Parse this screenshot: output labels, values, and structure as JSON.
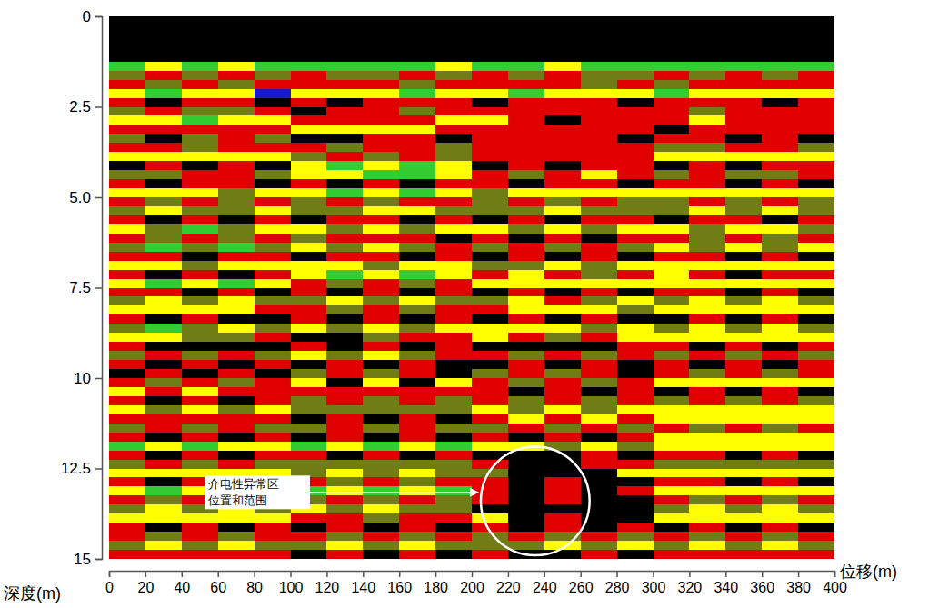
{
  "chart_data": {
    "type": "heatmap",
    "x_label": "位移(m)",
    "y_label": "深度(m)",
    "xlim": [
      0,
      400
    ],
    "ylim": [
      0,
      15
    ],
    "xticks": [
      0,
      20,
      40,
      60,
      80,
      100,
      120,
      140,
      160,
      180,
      200,
      220,
      240,
      260,
      280,
      300,
      320,
      340,
      360,
      380,
      400
    ],
    "yticks": [
      0,
      2.5,
      {
        "value": 5,
        "label": "5.0"
      },
      7.5,
      10,
      12.5,
      15
    ],
    "x_edges": [
      0,
      20,
      40,
      60,
      80,
      100,
      120,
      140,
      160,
      180,
      200,
      220,
      240,
      260,
      280,
      300,
      320,
      340,
      360,
      380,
      400
    ],
    "y_edges": [
      0,
      0.25,
      0.5,
      0.75,
      1,
      1.25,
      1.5,
      1.75,
      2,
      2.25,
      2.5,
      2.75,
      3,
      3.25,
      3.5,
      3.75,
      4,
      4.25,
      4.5,
      4.75,
      5,
      5.25,
      5.5,
      5.75,
      6,
      6.25,
      6.5,
      6.75,
      7,
      7.25,
      7.5,
      7.75,
      8,
      8.25,
      8.5,
      8.75,
      9,
      9.25,
      9.5,
      9.75,
      10,
      10.25,
      10.5,
      10.75,
      11,
      11.25,
      11.5,
      11.75,
      12,
      12.25,
      12.5,
      12.75,
      13,
      13.25,
      13.5,
      13.75,
      14,
      14.25,
      14.5,
      14.75,
      15
    ],
    "cells": [
      [
        0,
        0,
        0,
        0,
        0,
        0,
        0,
        0,
        0,
        0,
        0,
        0,
        0,
        0,
        0,
        0,
        0,
        0,
        0,
        0
      ],
      [
        0,
        0,
        0,
        0,
        0,
        0,
        0,
        0,
        0,
        0,
        0,
        0,
        0,
        0,
        0,
        0,
        0,
        0,
        0,
        0
      ],
      [
        0,
        0,
        0,
        0,
        0,
        0,
        0,
        0,
        0,
        0,
        0,
        0,
        0,
        0,
        0,
        0,
        0,
        0,
        0,
        0
      ],
      [
        0,
        0,
        0,
        0,
        0,
        0,
        0,
        0,
        0,
        0,
        0,
        0,
        0,
        0,
        0,
        0,
        0,
        0,
        0,
        0
      ],
      [
        0,
        0,
        0,
        0,
        0,
        0,
        0,
        0,
        0,
        0,
        0,
        0,
        0,
        0,
        0,
        0,
        0,
        0,
        0,
        0
      ],
      [
        4,
        3,
        4,
        3,
        4,
        4,
        4,
        4,
        4,
        3,
        4,
        4,
        3,
        4,
        4,
        4,
        4,
        4,
        4,
        4
      ],
      [
        2,
        1,
        2,
        1,
        2,
        1,
        2,
        2,
        1,
        2,
        1,
        2,
        1,
        2,
        2,
        1,
        2,
        1,
        2,
        1
      ],
      [
        1,
        2,
        1,
        2,
        1,
        1,
        1,
        1,
        2,
        1,
        1,
        1,
        1,
        2,
        1,
        2,
        1,
        1,
        1,
        1
      ],
      [
        3,
        4,
        3,
        3,
        5,
        3,
        3,
        3,
        4,
        3,
        3,
        4,
        3,
        3,
        3,
        4,
        3,
        3,
        3,
        3
      ],
      [
        1,
        0,
        1,
        1,
        0,
        1,
        0,
        1,
        1,
        1,
        0,
        1,
        1,
        1,
        0,
        1,
        1,
        1,
        0,
        1
      ],
      [
        2,
        1,
        2,
        2,
        1,
        0,
        1,
        1,
        2,
        1,
        1,
        1,
        1,
        1,
        1,
        1,
        2,
        1,
        1,
        1
      ],
      [
        3,
        3,
        4,
        3,
        3,
        1,
        1,
        1,
        1,
        3,
        3,
        1,
        0,
        1,
        1,
        1,
        3,
        1,
        1,
        1
      ],
      [
        1,
        1,
        1,
        1,
        1,
        3,
        3,
        3,
        3,
        1,
        1,
        1,
        1,
        1,
        1,
        0,
        1,
        1,
        1,
        1
      ],
      [
        2,
        0,
        2,
        1,
        2,
        0,
        0,
        1,
        1,
        0,
        1,
        1,
        1,
        1,
        0,
        1,
        1,
        0,
        1,
        0
      ],
      [
        1,
        1,
        2,
        1,
        1,
        1,
        2,
        1,
        1,
        2,
        1,
        1,
        1,
        1,
        1,
        2,
        2,
        1,
        1,
        2
      ],
      [
        3,
        3,
        3,
        3,
        3,
        2,
        1,
        2,
        1,
        2,
        1,
        1,
        1,
        1,
        1,
        3,
        3,
        3,
        3,
        3
      ],
      [
        0,
        1,
        0,
        1,
        0,
        3,
        4,
        3,
        4,
        3,
        0,
        1,
        0,
        1,
        1,
        0,
        1,
        0,
        1,
        1
      ],
      [
        2,
        2,
        1,
        1,
        2,
        3,
        3,
        4,
        4,
        3,
        1,
        2,
        1,
        3,
        1,
        2,
        1,
        2,
        2,
        1
      ],
      [
        1,
        0,
        1,
        1,
        0,
        1,
        0,
        1,
        0,
        1,
        1,
        0,
        1,
        1,
        0,
        1,
        1,
        0,
        1,
        0
      ],
      [
        3,
        3,
        3,
        2,
        3,
        3,
        4,
        3,
        4,
        3,
        2,
        3,
        3,
        3,
        3,
        3,
        3,
        3,
        3,
        3
      ],
      [
        1,
        2,
        1,
        2,
        1,
        2,
        1,
        2,
        1,
        1,
        2,
        1,
        2,
        1,
        2,
        2,
        1,
        2,
        1,
        2
      ],
      [
        2,
        3,
        2,
        2,
        3,
        2,
        2,
        3,
        3,
        2,
        2,
        2,
        3,
        2,
        2,
        2,
        3,
        2,
        3,
        2
      ],
      [
        1,
        0,
        1,
        0,
        1,
        0,
        1,
        1,
        0,
        1,
        0,
        1,
        0,
        1,
        1,
        0,
        1,
        1,
        0,
        1
      ],
      [
        3,
        2,
        4,
        2,
        3,
        3,
        2,
        3,
        2,
        3,
        3,
        2,
        3,
        2,
        3,
        3,
        2,
        3,
        3,
        2
      ],
      [
        1,
        2,
        1,
        2,
        1,
        2,
        1,
        1,
        1,
        0,
        1,
        0,
        1,
        0,
        1,
        1,
        2,
        1,
        2,
        1
      ],
      [
        2,
        4,
        2,
        4,
        2,
        3,
        2,
        3,
        2,
        1,
        2,
        1,
        2,
        1,
        2,
        3,
        2,
        3,
        2,
        3
      ],
      [
        1,
        1,
        0,
        1,
        1,
        0,
        1,
        1,
        0,
        1,
        0,
        1,
        0,
        1,
        0,
        1,
        1,
        0,
        1,
        0
      ],
      [
        3,
        3,
        2,
        3,
        3,
        3,
        3,
        2,
        3,
        3,
        2,
        2,
        3,
        2,
        3,
        3,
        3,
        3,
        3,
        3
      ],
      [
        1,
        0,
        1,
        0,
        1,
        3,
        4,
        3,
        4,
        3,
        1,
        3,
        1,
        2,
        1,
        3,
        1,
        0,
        1,
        1
      ],
      [
        3,
        4,
        3,
        4,
        3,
        1,
        2,
        1,
        2,
        1,
        3,
        3,
        3,
        3,
        3,
        3,
        3,
        3,
        3,
        3
      ],
      [
        1,
        1,
        0,
        1,
        0,
        1,
        0,
        1,
        0,
        1,
        0,
        1,
        0,
        1,
        0,
        1,
        1,
        0,
        1,
        0
      ],
      [
        2,
        3,
        2,
        3,
        2,
        2,
        3,
        2,
        3,
        2,
        2,
        3,
        1,
        2,
        3,
        2,
        3,
        2,
        3,
        2
      ],
      [
        3,
        3,
        3,
        3,
        1,
        1,
        2,
        1,
        2,
        1,
        1,
        3,
        3,
        3,
        2,
        3,
        3,
        3,
        3,
        3
      ],
      [
        1,
        0,
        1,
        0,
        0,
        1,
        0,
        1,
        0,
        1,
        0,
        1,
        0,
        1,
        0,
        0,
        1,
        0,
        1,
        0
      ],
      [
        2,
        4,
        2,
        3,
        2,
        3,
        2,
        3,
        2,
        3,
        3,
        3,
        3,
        2,
        3,
        2,
        3,
        2,
        3,
        2
      ],
      [
        3,
        3,
        2,
        2,
        1,
        0,
        0,
        2,
        1,
        1,
        3,
        1,
        2,
        1,
        3,
        3,
        3,
        3,
        3,
        3
      ],
      [
        1,
        0,
        0,
        0,
        0,
        1,
        0,
        1,
        0,
        1,
        0,
        0,
        0,
        0,
        1,
        1,
        0,
        1,
        0,
        1
      ],
      [
        2,
        1,
        2,
        1,
        2,
        3,
        2,
        3,
        2,
        1,
        1,
        2,
        1,
        2,
        1,
        2,
        1,
        2,
        1,
        2
      ],
      [
        1,
        0,
        1,
        0,
        1,
        0,
        1,
        0,
        1,
        0,
        0,
        1,
        0,
        1,
        0,
        1,
        0,
        1,
        0,
        1
      ],
      [
        0,
        1,
        0,
        1,
        0,
        2,
        1,
        2,
        1,
        0,
        2,
        1,
        2,
        1,
        0,
        1,
        2,
        1,
        2,
        1
      ],
      [
        1,
        2,
        1,
        2,
        1,
        3,
        0,
        3,
        0,
        3,
        1,
        2,
        1,
        2,
        1,
        3,
        3,
        3,
        3,
        3
      ],
      [
        3,
        1,
        3,
        1,
        1,
        1,
        1,
        1,
        1,
        1,
        1,
        0,
        1,
        0,
        1,
        0,
        1,
        0,
        1,
        0
      ],
      [
        1,
        0,
        1,
        0,
        1,
        2,
        1,
        2,
        1,
        2,
        1,
        2,
        1,
        2,
        1,
        2,
        1,
        2,
        1,
        2
      ],
      [
        3,
        2,
        3,
        2,
        3,
        2,
        2,
        2,
        2,
        2,
        3,
        2,
        3,
        2,
        3,
        3,
        3,
        3,
        3,
        3
      ],
      [
        1,
        1,
        1,
        1,
        1,
        0,
        1,
        0,
        1,
        0,
        1,
        3,
        1,
        3,
        1,
        3,
        3,
        3,
        3,
        3
      ],
      [
        2,
        1,
        2,
        1,
        2,
        2,
        1,
        2,
        1,
        2,
        2,
        1,
        2,
        1,
        2,
        1,
        2,
        1,
        2,
        1
      ],
      [
        1,
        0,
        1,
        0,
        1,
        0,
        1,
        0,
        1,
        0,
        1,
        0,
        1,
        0,
        1,
        3,
        3,
        3,
        3,
        3
      ],
      [
        4,
        3,
        4,
        3,
        3,
        4,
        3,
        4,
        3,
        4,
        3,
        3,
        2,
        3,
        2,
        3,
        3,
        3,
        3,
        3
      ],
      [
        1,
        0,
        1,
        0,
        1,
        1,
        0,
        1,
        0,
        1,
        0,
        0,
        0,
        1,
        0,
        1,
        1,
        0,
        1,
        0
      ],
      [
        2,
        1,
        2,
        1,
        2,
        2,
        2,
        2,
        2,
        2,
        1,
        0,
        0,
        1,
        1,
        2,
        2,
        2,
        2,
        2
      ],
      [
        3,
        3,
        3,
        3,
        3,
        2,
        3,
        2,
        3,
        2,
        2,
        0,
        0,
        0,
        3,
        3,
        3,
        3,
        3,
        3
      ],
      [
        1,
        0,
        1,
        0,
        1,
        1,
        2,
        1,
        2,
        1,
        1,
        0,
        1,
        0,
        0,
        1,
        1,
        0,
        1,
        0
      ],
      [
        3,
        4,
        3,
        4,
        3,
        4,
        3,
        4,
        3,
        4,
        1,
        0,
        1,
        0,
        1,
        3,
        3,
        3,
        3,
        3
      ],
      [
        1,
        2,
        1,
        2,
        1,
        2,
        1,
        2,
        1,
        2,
        1,
        0,
        1,
        0,
        0,
        1,
        2,
        1,
        2,
        1
      ],
      [
        2,
        3,
        2,
        3,
        2,
        3,
        2,
        3,
        2,
        2,
        0,
        0,
        0,
        0,
        0,
        2,
        3,
        2,
        3,
        2
      ],
      [
        3,
        3,
        3,
        3,
        3,
        1,
        1,
        2,
        1,
        1,
        3,
        0,
        1,
        0,
        0,
        3,
        3,
        3,
        3,
        3
      ],
      [
        1,
        0,
        1,
        0,
        1,
        0,
        1,
        0,
        1,
        0,
        1,
        0,
        1,
        0,
        1,
        0,
        1,
        0,
        1,
        0
      ],
      [
        1,
        2,
        1,
        2,
        1,
        1,
        2,
        1,
        2,
        1,
        2,
        1,
        2,
        1,
        2,
        1,
        2,
        1,
        2,
        1
      ],
      [
        2,
        3,
        2,
        3,
        2,
        2,
        3,
        2,
        3,
        2,
        2,
        2,
        3,
        2,
        3,
        2,
        3,
        2,
        3,
        2
      ],
      [
        1,
        1,
        1,
        1,
        1,
        0,
        1,
        0,
        1,
        0,
        1,
        0,
        0,
        1,
        0,
        1,
        1,
        1,
        1,
        1
      ]
    ],
    "annotation": {
      "text": [
        "介电性异常区",
        "位置和范围"
      ],
      "x_range": [
        205,
        265
      ],
      "y_range": [
        11.9,
        14.9
      ]
    }
  }
}
